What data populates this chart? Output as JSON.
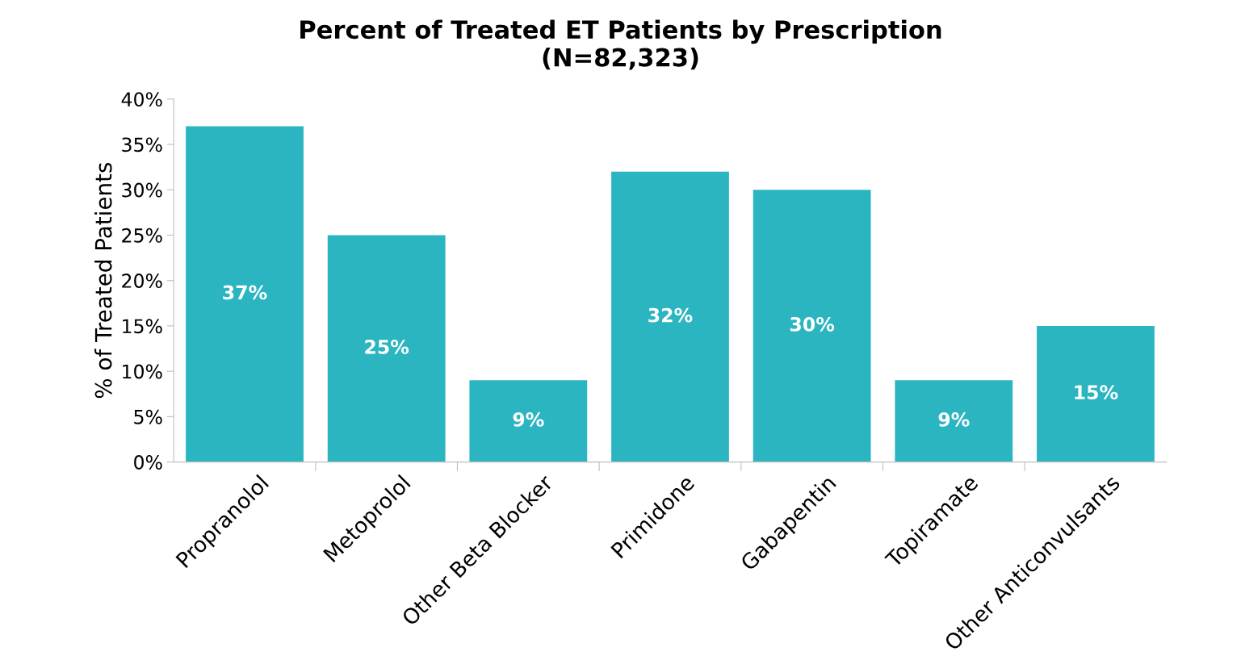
{
  "chart_data": {
    "type": "bar",
    "title": "Percent of Treated ET Patients by Prescription\n(N=82,323)",
    "ylabel": "% of Treated Patients",
    "categories": [
      "Propranolol",
      "Metoprolol",
      "Other Beta Blocker",
      "Primidone",
      "Gabapentin",
      "Topiramate",
      "Other Anticonvulsants"
    ],
    "values": [
      37,
      25,
      9,
      32,
      30,
      9,
      15
    ],
    "value_labels": [
      "37%",
      "25%",
      "9%",
      "32%",
      "30%",
      "9%",
      "15%"
    ],
    "color": "#2bb5c1",
    "ylim": [
      0,
      40
    ],
    "yticks": [
      {
        "value": 0,
        "label": "0%"
      },
      {
        "value": 5,
        "label": "5%"
      },
      {
        "value": 10,
        "label": "10%"
      },
      {
        "value": 15,
        "label": "15%"
      },
      {
        "value": 20,
        "label": "20%"
      },
      {
        "value": 25,
        "label": "25%"
      },
      {
        "value": 30,
        "label": "30%"
      },
      {
        "value": 35,
        "label": "35%"
      },
      {
        "value": 40,
        "label": "40%"
      }
    ],
    "grid": false,
    "legend": false
  }
}
